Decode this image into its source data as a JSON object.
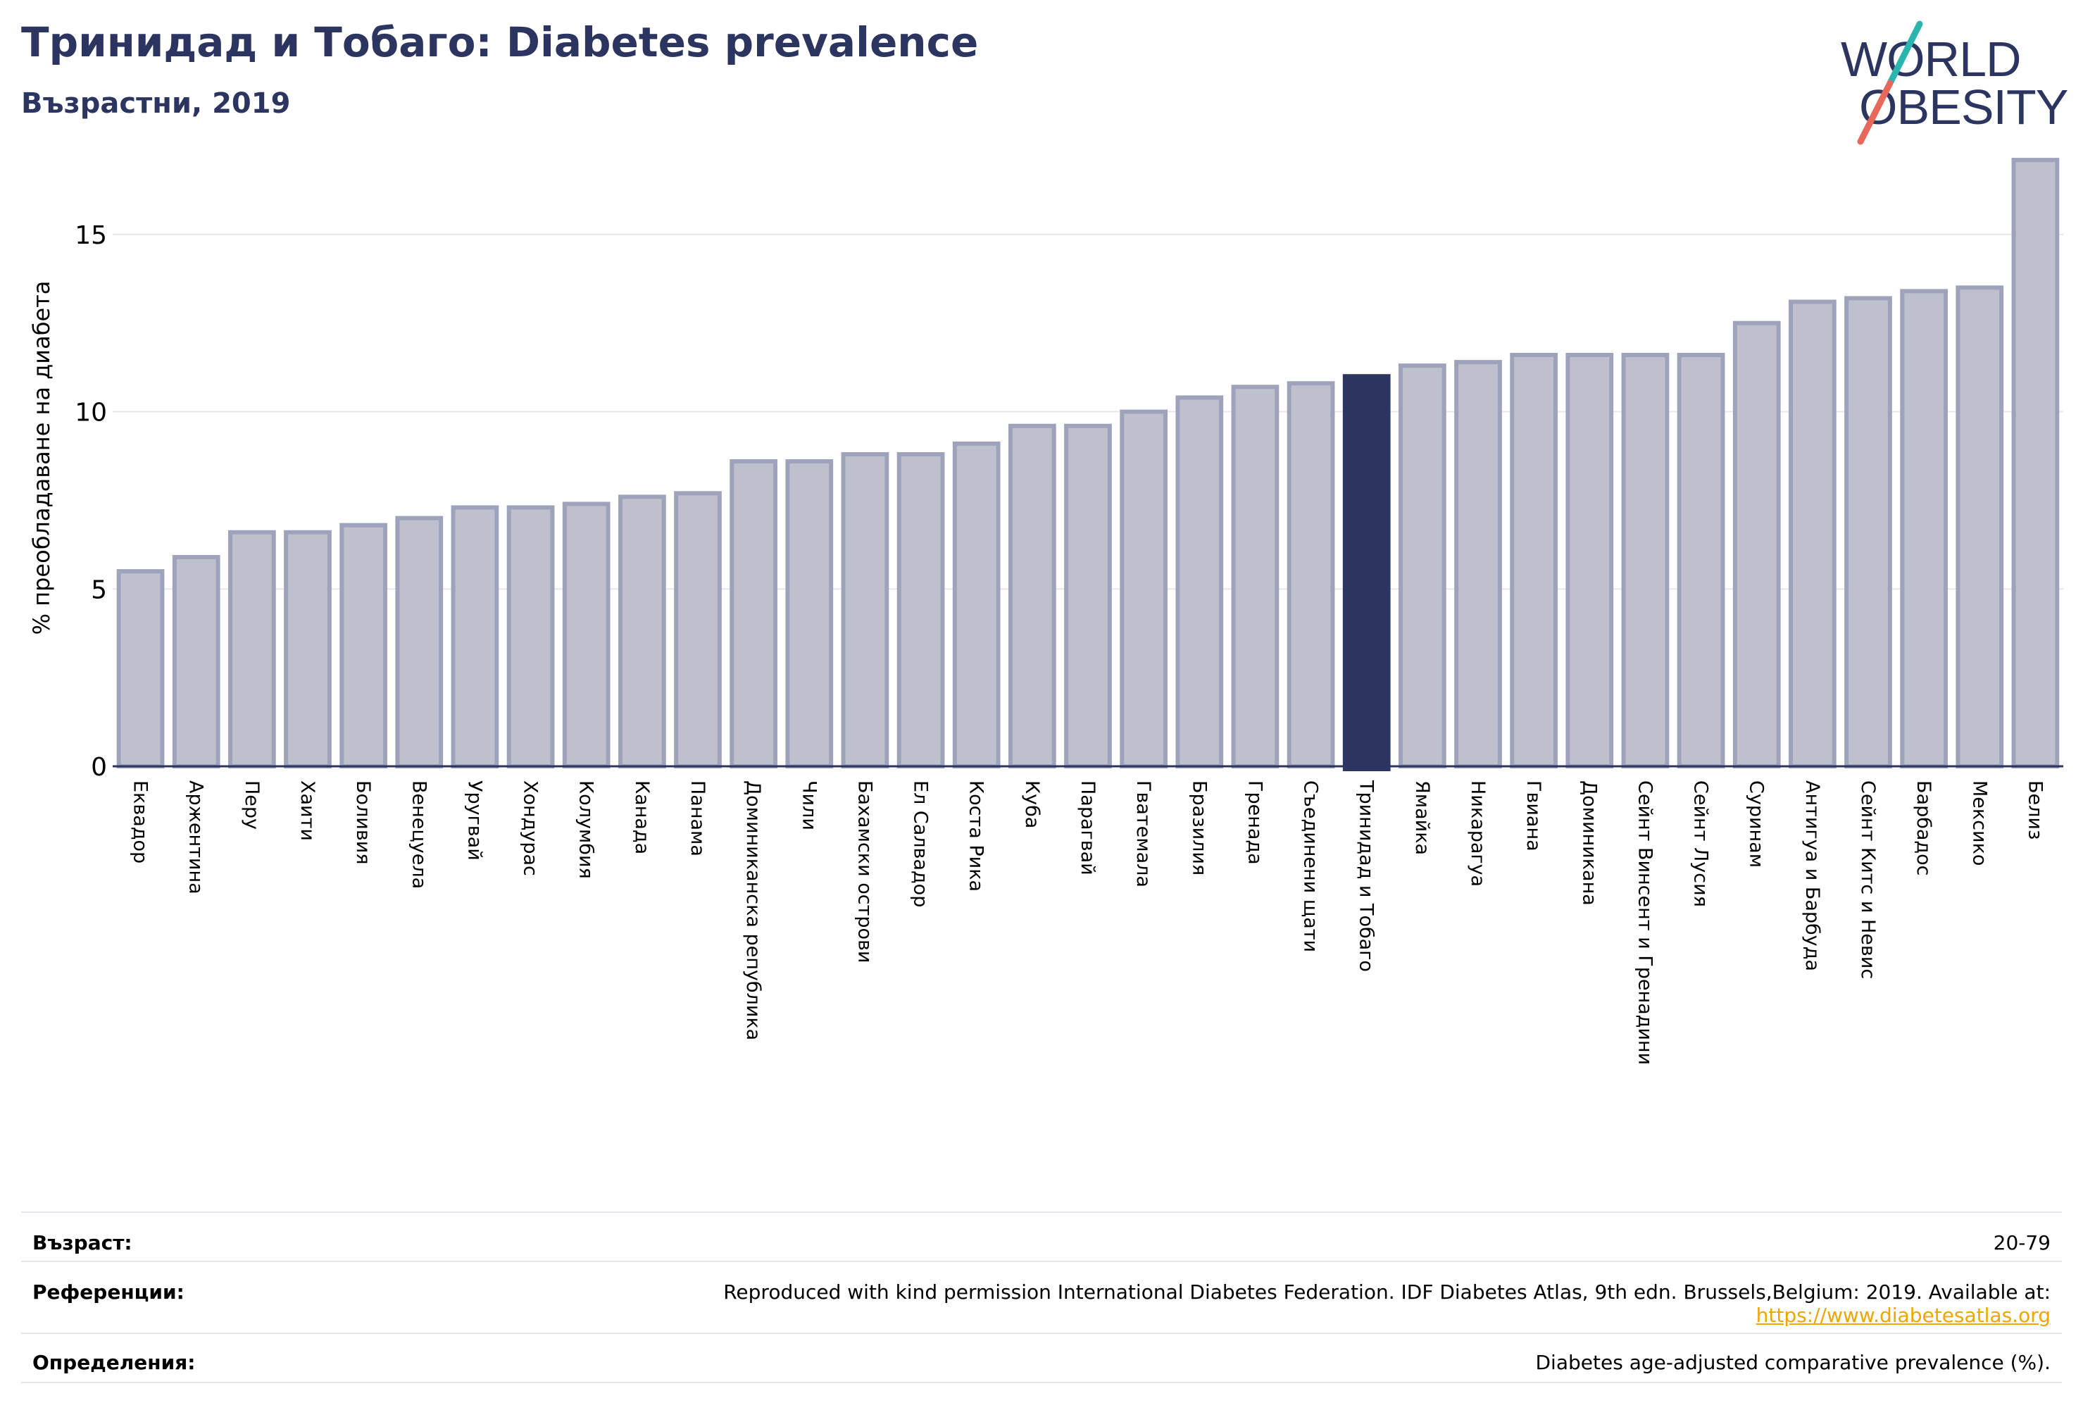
{
  "header": {
    "title": "Тринидад и Тобаго: Diabetes prevalence",
    "subtitle": "Възрастни, 2019"
  },
  "logo": {
    "line1": "WORLD",
    "line2": "OBESITY"
  },
  "colors": {
    "bar": "#bec1cd",
    "bar_border": "#9ea3bb",
    "highlight": "#2b3560",
    "title": "#2b3560",
    "grid": "#e6e8ef",
    "logo_teal": "#2bb5b0",
    "logo_coral": "#e8695c",
    "link": "#f0a500"
  },
  "chart_data": {
    "type": "bar",
    "title": "Тринидад и Тобаго: Diabetes prevalence",
    "ylabel": "% преобладаване на диабета",
    "xlabel": "",
    "ylim": [
      0,
      17.4
    ],
    "yticks": [
      0,
      5,
      10,
      15
    ],
    "grid": true,
    "highlight": "Тринидад и Тобаго",
    "categories": [
      "Еквадор",
      "Аржентина",
      "Перу",
      "Хаити",
      "Боливия",
      "Венецуела",
      "Уругвай",
      "Хондурас",
      "Колумбия",
      "Канада",
      "Панама",
      "Доминиканска република",
      "Чили",
      "Бахамски острови",
      "Ел Салвадор",
      "Коста Рика",
      "Куба",
      "Парагвай",
      "Гватемала",
      "Бразилия",
      "Гренада",
      "Съединени щати",
      "Тринидад и Тобаго",
      "Ямайка",
      "Никарагуа",
      "Гвиана",
      "Доминикана",
      "Сейнт Винсент и Гренадини",
      "Сейнт Лусия",
      "Суринам",
      "Антигуа и Барбуда",
      "Сейнт Китс и Невис",
      "Барбадос",
      "Мексико",
      "Белиз"
    ],
    "values": [
      5.5,
      5.9,
      6.6,
      6.6,
      6.8,
      7.0,
      7.3,
      7.3,
      7.4,
      7.6,
      7.7,
      8.6,
      8.6,
      8.8,
      8.8,
      9.1,
      9.6,
      9.6,
      10.0,
      10.4,
      10.7,
      10.8,
      11.0,
      11.3,
      11.4,
      11.6,
      11.6,
      11.6,
      11.6,
      12.5,
      13.1,
      13.2,
      13.4,
      13.5,
      17.1
    ]
  },
  "footer": {
    "age_label": "Възраст:",
    "age_value": "20-79",
    "refs_label": "Референции:",
    "refs_value": "Reproduced with kind permission International Diabetes Federation. IDF Diabetes Atlas, 9th edn. Brussels,Belgium: 2019. Available at:",
    "refs_link": "https://www.diabetesatlas.org",
    "defs_label": "Определения:",
    "defs_value": "Diabetes age-adjusted comparative prevalence (%)."
  }
}
